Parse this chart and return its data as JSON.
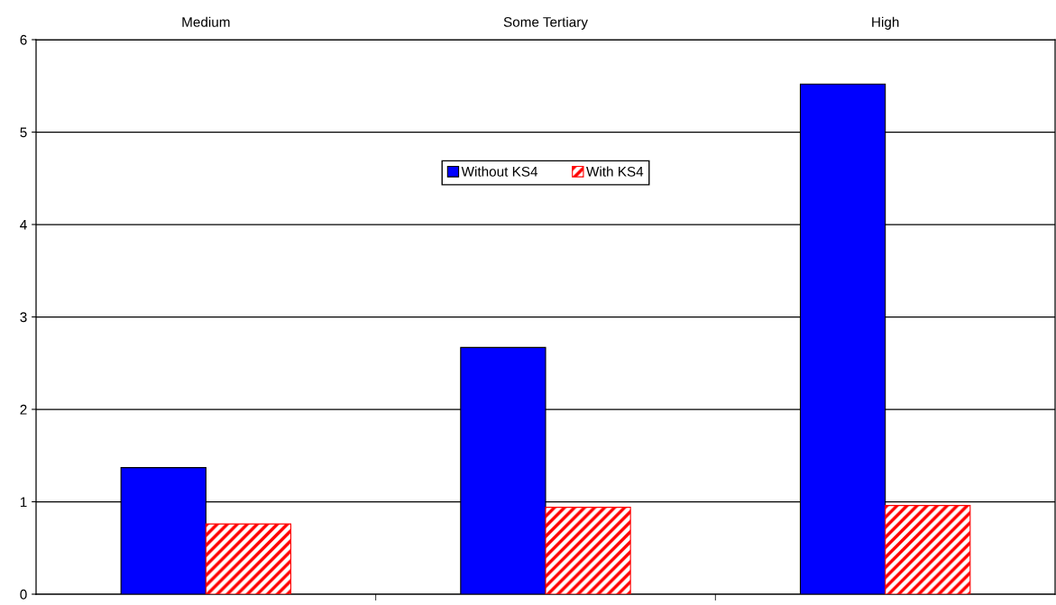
{
  "chart_data": {
    "type": "bar",
    "categories": [
      "Medium",
      "Some Tertiary",
      "High"
    ],
    "series": [
      {
        "name": "Without KS4",
        "color": "#0000ff",
        "values": [
          1.37,
          2.67,
          5.52
        ]
      },
      {
        "name": "With KS4",
        "color": "#ff0000",
        "values": [
          0.76,
          0.94,
          0.96
        ]
      }
    ],
    "ylim": [
      0,
      6
    ],
    "yticks": [
      0,
      1,
      2,
      3,
      4,
      5,
      6
    ],
    "grid": "y",
    "legend": "top"
  }
}
